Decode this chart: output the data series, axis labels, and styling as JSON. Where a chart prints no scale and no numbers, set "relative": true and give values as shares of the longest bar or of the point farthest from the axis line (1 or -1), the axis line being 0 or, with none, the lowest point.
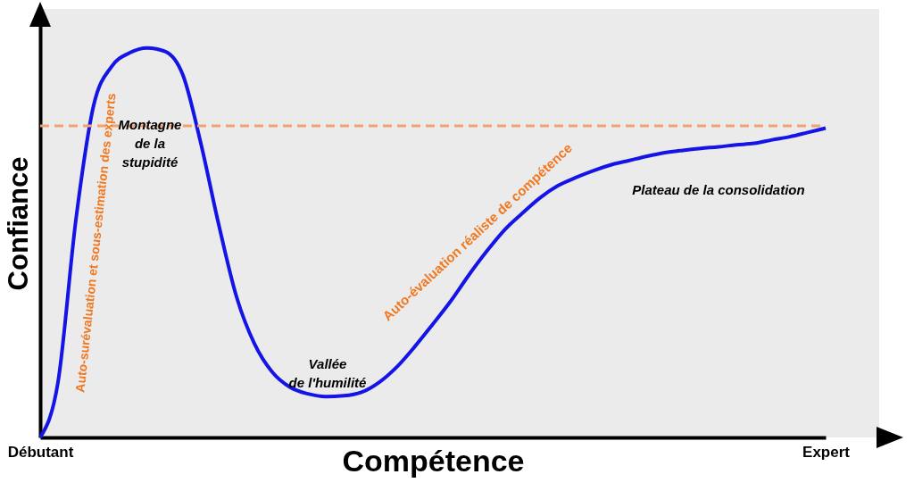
{
  "chart_data": {
    "type": "line",
    "relative": true,
    "xlabel": "Compétence",
    "ylabel": "Confiance",
    "categories": [
      "Débutant",
      null,
      null,
      null,
      null,
      null,
      null,
      null,
      null,
      null,
      null,
      null,
      null,
      null,
      null,
      null,
      null,
      null,
      null,
      null,
      null,
      null,
      null,
      null,
      null,
      null,
      null,
      null,
      null,
      null,
      null,
      null,
      null,
      null,
      null,
      null,
      null,
      null,
      null,
      null,
      null,
      null,
      null,
      null,
      "Expert"
    ],
    "series": [
      {
        "color": "#1414e6",
        "values": [
          0,
          0.142,
          0.558,
          0.853,
          0.952,
          0.987,
          1,
          0.991,
          0.93,
          0.755,
          0.547,
          0.361,
          0.241,
          0.168,
          0.129,
          0.112,
          0.105,
          0.107,
          0.116,
          0.142,
          0.182,
          0.234,
          0.291,
          0.35,
          0.416,
          0.477,
          0.532,
          0.575,
          0.615,
          0.646,
          0.667,
          0.685,
          0.7,
          0.711,
          0.722,
          0.731,
          0.737,
          0.742,
          0.746,
          0.751,
          0.755,
          0.764,
          0.772,
          0.783,
          0.794
        ]
      }
    ],
    "ref_lines": [
      {
        "axis": "y",
        "value": 0.8,
        "color": "#f4a26b",
        "line_style": "dashed"
      }
    ],
    "annotations": [
      "Auto-surévaluation et sous-estimation des experts",
      "Montagne\nde la\nstupidité",
      "Vallée\nde l'humilité",
      "Auto-évaluation réaliste de compétence",
      "Plateau de la consolidation"
    ],
    "grid": false,
    "marker": "none",
    "line_style": "solid"
  }
}
